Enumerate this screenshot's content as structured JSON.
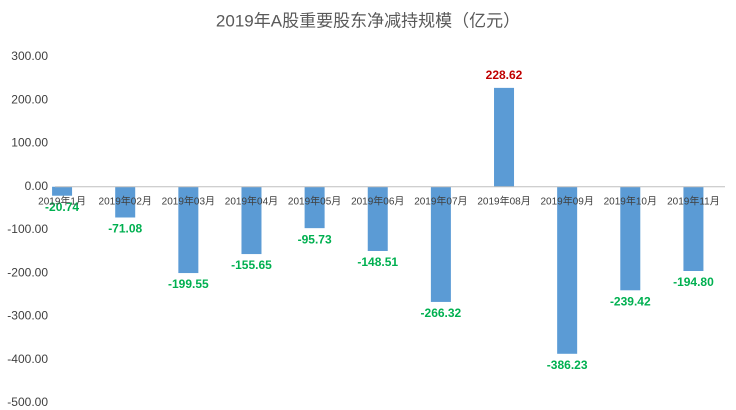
{
  "chart_data": {
    "type": "bar",
    "title": "2019年A股重要股东净减持规模（亿元）",
    "categories": [
      "2019年1月",
      "2019年02月",
      "2019年03月",
      "2019年04月",
      "2019年05月",
      "2019年06月",
      "2019年07月",
      "2019年08月",
      "2019年09月",
      "2019年10月",
      "2019年11月"
    ],
    "values": [
      -20.74,
      -71.08,
      -199.55,
      -155.65,
      -95.73,
      -148.51,
      -266.32,
      228.62,
      -386.23,
      -239.42,
      -194.8
    ],
    "value_labels": [
      "-20.74",
      "-71.08",
      "-199.55",
      "-155.65",
      "-95.73",
      "-148.51",
      "-266.32",
      "228.62",
      "-386.23",
      "-239.42",
      "-194.80"
    ],
    "color": "#5b9bd5",
    "positive_label_color": "#c00000",
    "negative_label_color": "#00b050",
    "ylim": [
      -500,
      300
    ],
    "yticks": [
      {
        "value": -500,
        "label": "-500.00"
      },
      {
        "value": -400,
        "label": "-400.00"
      },
      {
        "value": -300,
        "label": "-300.00"
      },
      {
        "value": -200,
        "label": "-200.00"
      },
      {
        "value": -100,
        "label": "-100.00"
      },
      {
        "value": 0,
        "label": "0.00"
      },
      {
        "value": 100,
        "label": "100.00"
      },
      {
        "value": 200,
        "label": "200.00"
      },
      {
        "value": 300,
        "label": "300.00"
      }
    ],
    "grid": false
  }
}
